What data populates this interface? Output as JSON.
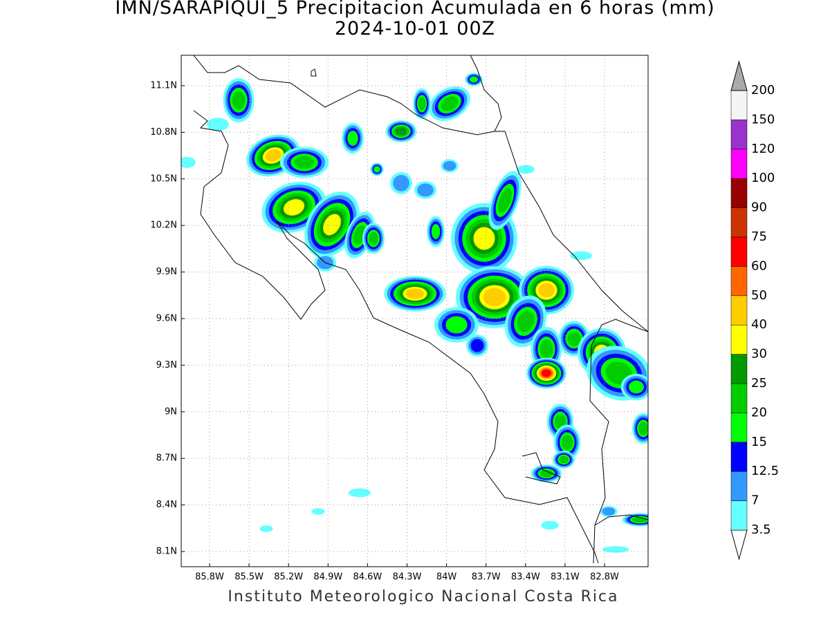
{
  "header": {
    "title": "IMN/SARAPIQUI_5 Precipitacion Acumulada en 6 horas (mm)",
    "subtitle": "2024-10-01 00Z"
  },
  "map": {
    "lat_labels": [
      "11.1N",
      "10.8N",
      "10.5N",
      "10.2N",
      "9.9N",
      "9.6N",
      "9.3N",
      "9N",
      "8.7N",
      "8.4N",
      "8.1N"
    ],
    "lon_labels": [
      "85.8W",
      "85.5W",
      "85.2W",
      "84.9W",
      "84.6W",
      "84.3W",
      "84W",
      "83.7W",
      "83.4W",
      "83.1W",
      "82.8W"
    ],
    "grid": true
  },
  "colorbar": {
    "levels": [
      3.5,
      7,
      12.5,
      15,
      20,
      25,
      30,
      40,
      50,
      60,
      75,
      90,
      100,
      120,
      150,
      200
    ],
    "colors": [
      "#ffffff",
      "#66ffff",
      "#3399ff",
      "#0000ff",
      "#00ff00",
      "#00cc00",
      "#009900",
      "#ffff00",
      "#ffcc00",
      "#ff6600",
      "#ff0000",
      "#cc3300",
      "#990000",
      "#ff00ff",
      "#9933cc",
      "#f5f5f5",
      "#aaaaaa"
    ]
  },
  "footer": {
    "credit": "Instituto Meteorologico Nacional Costa Rica"
  }
}
